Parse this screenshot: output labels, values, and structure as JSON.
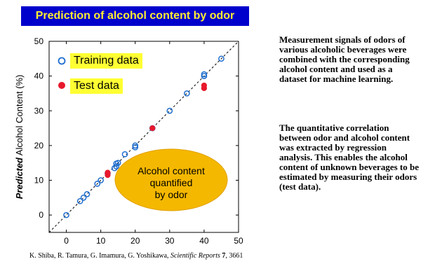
{
  "banner_title": "Prediction of alcohol content by odor",
  "chart_data": {
    "type": "scatter",
    "ylabel_bold": "Predicted",
    "ylabel_rest": " Alcohol Content (%)",
    "xlim": [
      -5,
      50
    ],
    "ylim": [
      -5,
      50
    ],
    "ticks": [
      0,
      10,
      20,
      30,
      40,
      50
    ],
    "diagonal": true,
    "series": [
      {
        "name": "Training data",
        "marker": "open-circle",
        "color": "#1f6fd0",
        "points": [
          [
            0,
            0
          ],
          [
            4,
            4
          ],
          [
            5,
            5
          ],
          [
            6,
            6
          ],
          [
            9,
            9
          ],
          [
            10,
            10
          ],
          [
            12,
            12
          ],
          [
            14,
            13.5
          ],
          [
            14.5,
            14
          ],
          [
            15,
            15
          ],
          [
            14.5,
            14.8
          ],
          [
            17,
            17.5
          ],
          [
            20,
            19.5
          ],
          [
            20,
            20
          ],
          [
            25,
            25
          ],
          [
            30,
            30
          ],
          [
            35,
            35
          ],
          [
            40,
            40
          ],
          [
            40,
            40.5
          ],
          [
            45,
            45
          ]
        ]
      },
      {
        "name": "Test data",
        "marker": "filled-circle",
        "color": "#e8192c",
        "points": [
          [
            12,
            11.5
          ],
          [
            12,
            12.2
          ],
          [
            25,
            25
          ],
          [
            40,
            36.5
          ],
          [
            40,
            37.3
          ]
        ]
      }
    ],
    "ellipse_text": [
      "Alcohol content",
      "quantified",
      "by odor"
    ],
    "ellipse_color": "#f5b800"
  },
  "description": {
    "para1": "Measurement signals of odors of various alcoholic beverages were combined with the corresponding alcohol content and used as a dataset for machine learning.",
    "para2": "The quantitative correlation between odor and alcohol content was extracted by regression analysis. This enables the alcohol content of unknown beverages to be estimated by measuring their odors (test data)."
  },
  "citation": {
    "authors": "K. Shiba, R. Tamura, G. Imamura, G. Yoshikawa, ",
    "journal": "Scientific Reports",
    "volume": "7",
    "pages": ", 3661"
  }
}
